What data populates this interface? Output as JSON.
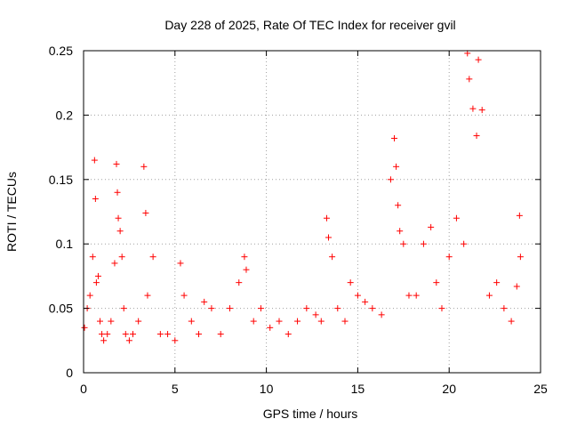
{
  "chart_data": {
    "type": "scatter",
    "title": "Day 228 of 2025, Rate Of TEC Index for receiver gvil",
    "xlabel": "GPS time / hours",
    "ylabel": "ROTI / TECUs",
    "xlim": [
      0,
      25
    ],
    "ylim": [
      0,
      0.25
    ],
    "x_ticks": [
      "0",
      "5",
      "10",
      "15",
      "20",
      "25"
    ],
    "y_ticks": [
      "0",
      "0.05",
      "0.1",
      "0.15",
      "0.2",
      "0.25"
    ],
    "grid": true,
    "marker": "plus",
    "color": "#ff0000",
    "series": [
      {
        "x": [
          0.05,
          0.2,
          0.35,
          0.5,
          0.6,
          0.65,
          0.7,
          0.8,
          0.9,
          1.0,
          1.1,
          1.3,
          1.5,
          1.7,
          1.8,
          1.85,
          1.9,
          2.0,
          2.1,
          2.2,
          2.3,
          2.5,
          2.7,
          3.0,
          3.3,
          3.4,
          3.5,
          3.8,
          4.2,
          4.6,
          5.0,
          5.3,
          5.5,
          5.9,
          6.3,
          6.6,
          7.0,
          7.5,
          8.0,
          8.5,
          8.8,
          8.9,
          9.3,
          9.7,
          10.2,
          10.7,
          11.2,
          11.7,
          12.2,
          12.7,
          13.0,
          13.3,
          13.4,
          13.6,
          13.9,
          14.3,
          14.6,
          15.0,
          15.4,
          15.8,
          16.3,
          16.8,
          17.0,
          17.1,
          17.2,
          17.3,
          17.5,
          17.8,
          18.2,
          18.6,
          19.0,
          19.3,
          19.6,
          20.0,
          20.4,
          20.8,
          21.0,
          21.1,
          21.3,
          21.5,
          21.6,
          21.8,
          22.2,
          22.6,
          23.0,
          23.4,
          23.7,
          23.85,
          23.9
        ],
        "y": [
          0.035,
          0.05,
          0.06,
          0.09,
          0.165,
          0.135,
          0.07,
          0.075,
          0.04,
          0.03,
          0.025,
          0.03,
          0.04,
          0.085,
          0.162,
          0.14,
          0.12,
          0.11,
          0.09,
          0.05,
          0.03,
          0.025,
          0.03,
          0.04,
          0.16,
          0.124,
          0.06,
          0.09,
          0.03,
          0.03,
          0.025,
          0.085,
          0.06,
          0.04,
          0.03,
          0.055,
          0.05,
          0.03,
          0.05,
          0.07,
          0.09,
          0.08,
          0.04,
          0.05,
          0.035,
          0.04,
          0.03,
          0.04,
          0.05,
          0.045,
          0.04,
          0.12,
          0.105,
          0.09,
          0.05,
          0.04,
          0.07,
          0.06,
          0.055,
          0.05,
          0.045,
          0.15,
          0.182,
          0.16,
          0.13,
          0.11,
          0.1,
          0.06,
          0.06,
          0.1,
          0.113,
          0.07,
          0.05,
          0.09,
          0.12,
          0.1,
          0.248,
          0.228,
          0.205,
          0.184,
          0.243,
          0.204,
          0.06,
          0.07,
          0.05,
          0.04,
          0.067,
          0.122,
          0.09
        ]
      }
    ]
  }
}
